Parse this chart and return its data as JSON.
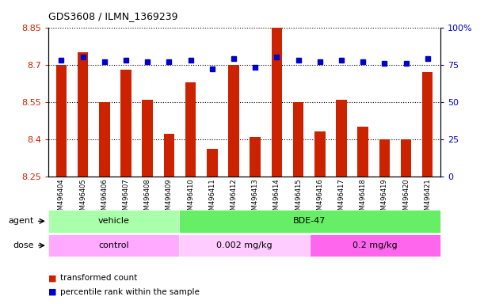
{
  "title": "GDS3608 / ILMN_1369239",
  "samples": [
    "GSM496404",
    "GSM496405",
    "GSM496406",
    "GSM496407",
    "GSM496408",
    "GSM496409",
    "GSM496410",
    "GSM496411",
    "GSM496412",
    "GSM496413",
    "GSM496414",
    "GSM496415",
    "GSM496416",
    "GSM496417",
    "GSM496418",
    "GSM496419",
    "GSM496420",
    "GSM496421"
  ],
  "bar_values": [
    8.7,
    8.75,
    8.55,
    8.68,
    8.56,
    8.42,
    8.63,
    8.36,
    8.7,
    8.41,
    8.85,
    8.55,
    8.43,
    8.56,
    8.45,
    8.4,
    8.4,
    8.67
  ],
  "dot_values": [
    78,
    80,
    77,
    78,
    77,
    77,
    78,
    72,
    79,
    73,
    80,
    78,
    77,
    78,
    77,
    76,
    76,
    79
  ],
  "bar_color": "#cc2200",
  "dot_color": "#0000cc",
  "ymin": 8.25,
  "ymax": 8.85,
  "y_ticks": [
    8.25,
    8.4,
    8.55,
    8.7,
    8.85
  ],
  "y2min": 0,
  "y2max": 100,
  "y2_ticks": [
    0,
    25,
    50,
    75,
    100
  ],
  "y2_ticklabels": [
    "0",
    "25",
    "50",
    "75",
    "100%"
  ],
  "agent_groups": [
    {
      "label": "vehicle",
      "start": 0,
      "end": 6,
      "color": "#aaffaa"
    },
    {
      "label": "BDE-47",
      "start": 6,
      "end": 18,
      "color": "#66ee66"
    }
  ],
  "dose_groups": [
    {
      "label": "control",
      "start": 0,
      "end": 6,
      "color": "#ffaaff"
    },
    {
      "label": "0.002 mg/kg",
      "start": 6,
      "end": 12,
      "color": "#ffccff"
    },
    {
      "label": "0.2 mg/kg",
      "start": 12,
      "end": 18,
      "color": "#ff66ee"
    }
  ],
  "legend_red": "transformed count",
  "legend_blue": "percentile rank within the sample",
  "xlabel_agent": "agent",
  "xlabel_dose": "dose",
  "bg_color": "#ffffff",
  "tick_label_color_left": "#cc2200",
  "tick_label_color_right": "#0000cc"
}
